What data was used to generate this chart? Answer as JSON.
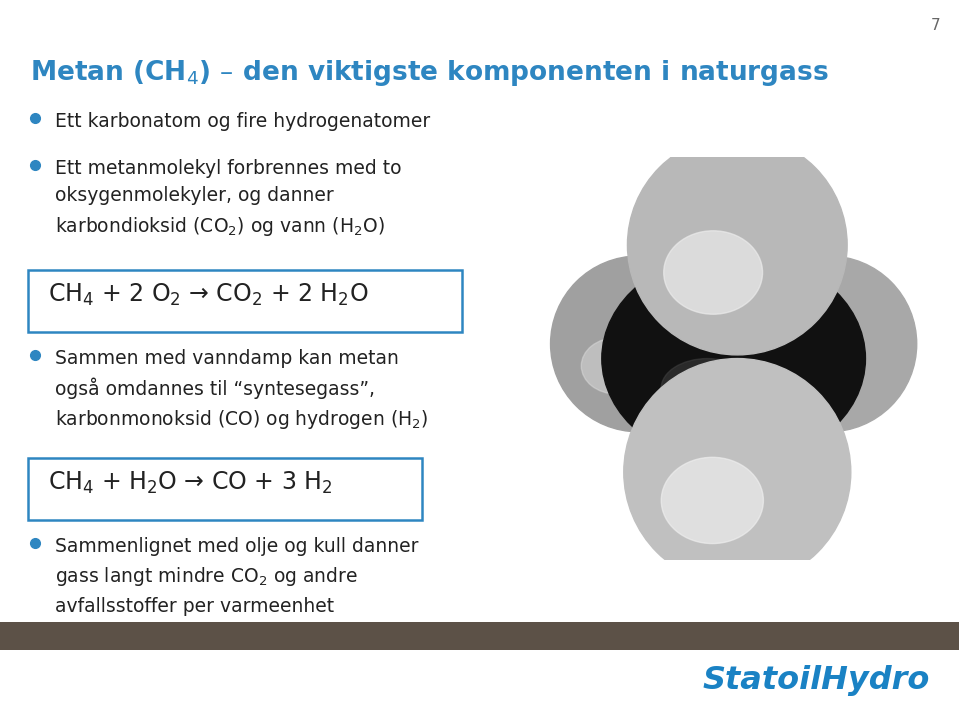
{
  "slide_bg": "#ffffff",
  "title_text": "Metan (CH$_4$) – den viktigste komponenten i naturgass",
  "title_color": "#2e86c1",
  "title_fontsize": 19,
  "bullet_color": "#2e86c1",
  "text_color": "#222222",
  "bullet_fontsize": 13.5,
  "eq_fontsize": 16,
  "eq_box_color": "#2e86c1",
  "footer_bar_color": "#5c5147",
  "statoil_color": "#1a82c4",
  "page_num": "7",
  "page_num_color": "#666666",
  "bullet1": "Ett karbonatom og fire hydrogenatomer",
  "bullet2_line1": "Ett metanmolekyl forbrennes med to",
  "bullet2_line2": "oksygenmolekyler, og danner",
  "bullet2_line3": "karbondioksid (CO$_2$) og vann (H$_2$O)",
  "eq1": "CH$_4$ + 2 O$_2$ → CO$_2$ + 2 H$_2$O",
  "bullet3_line1": "Sammen med vanndamp kan metan",
  "bullet3_line2": "også omdannes til “syntesegass”,",
  "bullet3_line3": "karbonmonoksid (CO) og hydrogen (H$_2$)",
  "eq2": "CH$_4$ + H$_2$O → CO + 3 H$_2$",
  "bullet4_line1": "Sammenlignet med olje og kull danner",
  "bullet4_line2": "gass langt mindre CO$_2$ og andre",
  "bullet4_line3": "avfallsstoffer per varmeenhet"
}
